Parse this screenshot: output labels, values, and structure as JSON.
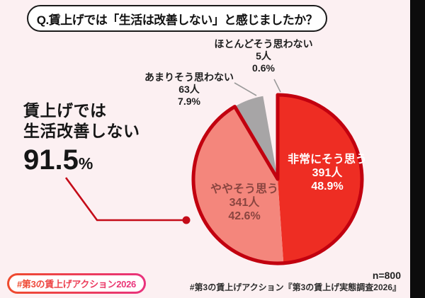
{
  "title": {
    "text": "Q.賃上げでは「生活は改善しない」と感じましたか？"
  },
  "headline": {
    "line1": "賃上げでは",
    "line2": "生活改善しない",
    "value": "91.5",
    "unit": "%"
  },
  "chart_data": {
    "type": "pie",
    "title": "賃上げでは「生活は改善しない」と感じましたか？",
    "n": 800,
    "n_label": "n=800",
    "start_angle_deg": 0,
    "direction": "clockwise",
    "slices": [
      {
        "label": "非常にそう思う",
        "count": 391,
        "count_label": "391人",
        "pct": 48.9,
        "pct_label": "48.9%",
        "color": "#ee2d23",
        "text_color": "#ffffff",
        "label_position": "inside"
      },
      {
        "label": "ややそう思う",
        "count": 341,
        "count_label": "341人",
        "pct": 42.6,
        "pct_label": "42.6%",
        "color": "#f4867c",
        "text_color": "#8a4540",
        "label_position": "inside"
      },
      {
        "label": "あまりそう思わない",
        "count": 63,
        "count_label": "63人",
        "pct": 7.9,
        "pct_label": "7.9%",
        "color": "#a7a5a6",
        "text_color": "#1f1f1f",
        "label_position": "outside"
      },
      {
        "label": "ほとんどそう思わない",
        "count": 5,
        "count_label": "5人",
        "pct": 0.6,
        "pct_label": "0.6%",
        "color": "#fcf0f2",
        "text_color": "#1f1f1f",
        "label_position": "outside"
      }
    ],
    "highlight": {
      "label": "賃上げでは生活改善しない",
      "pct": 91.5,
      "outline_color": "#c2000f",
      "leader_color": "#c40b18"
    },
    "leader_line_gray": "#9a9a9a"
  },
  "footer": {
    "badge": "#第3の賃上げアクション2026",
    "source": "#第3の賃上げアクション『第3の賃上げ実態調査2026』",
    "badge_gradient_start": "#ef4b2d",
    "badge_gradient_end": "#e9327d"
  },
  "colors": {
    "page_bg": "#fcf0f2",
    "right_strip": "#0c0c0c"
  }
}
